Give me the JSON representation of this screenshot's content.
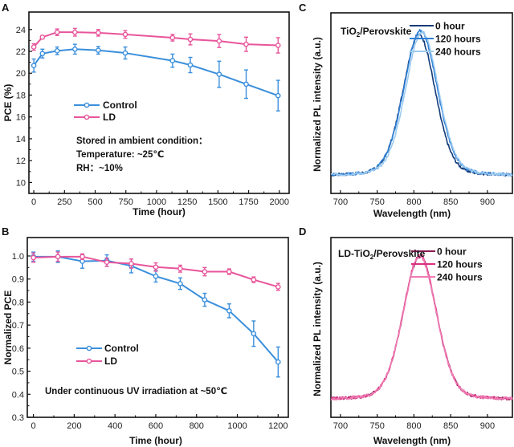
{
  "colors": {
    "control": "#3a8fdc",
    "ld": "#e8559b",
    "c_0h": "#123a7a",
    "c_120h": "#2f80d6",
    "c_240h": "#9ccbf0",
    "d_0h": "#8a1d52",
    "d_120h": "#d9307f",
    "d_240h": "#f07ab3"
  },
  "chart_data": [
    {
      "id": "A",
      "panel_label": "A",
      "type": "line",
      "title": "",
      "xlabel": "Time (hour)",
      "ylabel": "PCE (%)",
      "xlim": [
        -40,
        2080
      ],
      "ylim": [
        9,
        25.6
      ],
      "xticks": [
        0,
        250,
        500,
        750,
        1000,
        1250,
        1500,
        1750,
        2000
      ],
      "yticks": [
        10,
        12,
        14,
        16,
        18,
        20,
        22,
        24
      ],
      "grid": false,
      "legend_position": "center-left",
      "legend": [
        "Control",
        "LD"
      ],
      "annotations": [
        "Stored in  ambient condition：",
        "Temperature: ~25℃",
        "RH：~10%"
      ],
      "x": [
        0,
        70,
        190,
        335,
        525,
        745,
        1130,
        1275,
        1510,
        1730,
        1990
      ],
      "series": [
        {
          "name": "Control",
          "color_key": "control",
          "values": [
            20.7,
            21.8,
            22.05,
            22.2,
            22.1,
            21.85,
            21.15,
            20.75,
            19.9,
            19.0,
            17.95
          ],
          "errors": [
            0.6,
            0.4,
            0.35,
            0.45,
            0.35,
            0.55,
            0.6,
            0.7,
            1.2,
            1.3,
            1.4
          ]
        },
        {
          "name": "LD",
          "color_key": "ld",
          "values": [
            22.4,
            23.3,
            23.75,
            23.75,
            23.7,
            23.55,
            23.25,
            23.1,
            22.95,
            22.65,
            22.55
          ],
          "errors": [
            0.3,
            0.15,
            0.3,
            0.35,
            0.3,
            0.35,
            0.3,
            0.5,
            0.6,
            0.65,
            0.7
          ]
        }
      ]
    },
    {
      "id": "B",
      "panel_label": "B",
      "type": "line",
      "title": "",
      "xlabel": "Time (hour)",
      "ylabel": "Normalized PCE",
      "xlim": [
        -30,
        1250
      ],
      "ylim": [
        0.3,
        1.08
      ],
      "xticks": [
        0,
        200,
        400,
        600,
        800,
        1000,
        1200
      ],
      "yticks": [
        0.3,
        0.4,
        0.5,
        0.6,
        0.7,
        0.8,
        0.9,
        1.0
      ],
      "ytick_labels": [
        "0.3",
        "0.4",
        "0.5",
        "0.6",
        "0.7",
        "0.8",
        "0.9",
        "1.0"
      ],
      "grid": false,
      "legend_position": "center-left",
      "legend": [
        "Control",
        "LD"
      ],
      "annotations": [
        "Under continuous UV irradiation at ~50℃"
      ],
      "x": [
        0,
        120,
        240,
        360,
        480,
        600,
        720,
        840,
        960,
        1080,
        1200
      ],
      "series": [
        {
          "name": "Control",
          "color_key": "control",
          "values": [
            0.997,
            0.997,
            0.977,
            0.98,
            0.957,
            0.912,
            0.88,
            0.81,
            0.762,
            0.663,
            0.54
          ],
          "errors": [
            0.02,
            0.025,
            0.03,
            0.025,
            0.03,
            0.025,
            0.025,
            0.028,
            0.03,
            0.055,
            0.065
          ]
        },
        {
          "name": "LD",
          "color_key": "ld",
          "values": [
            0.993,
            0.997,
            0.997,
            0.973,
            0.967,
            0.952,
            0.945,
            0.932,
            0.932,
            0.897,
            0.866
          ],
          "errors": [
            0.02,
            0.02,
            0.012,
            0.018,
            0.02,
            0.018,
            0.015,
            0.018,
            0.012,
            0.012,
            0.015
          ]
        }
      ]
    },
    {
      "id": "C",
      "panel_label": "C",
      "type": "line",
      "title": "TiO2/Perovskite",
      "title_main": "TiO",
      "title_sub": "2",
      "title_rest": "/Perovskite",
      "xlabel": "Wavelength (nm)",
      "ylabel": "Normalized PL intensity (a.u.)",
      "xlim": [
        687,
        934
      ],
      "ylim": [
        -0.12,
        1.12
      ],
      "xticks": [
        700,
        750,
        800,
        850,
        900
      ],
      "grid": false,
      "legend_position": "top-right",
      "legend": [
        "0 hour",
        "120 hours",
        "240 hours"
      ],
      "series": [
        {
          "name": "0 hour",
          "color_key": "c_0h",
          "peak_nm": 807,
          "fwhm_nm": 52,
          "peak": 0.97
        },
        {
          "name": "120 hours",
          "color_key": "c_120h",
          "peak_nm": 809,
          "fwhm_nm": 54,
          "peak": 1.0
        },
        {
          "name": "240 hours",
          "color_key": "c_240h",
          "peak_nm": 811,
          "fwhm_nm": 53,
          "peak": 0.99
        }
      ]
    },
    {
      "id": "D",
      "panel_label": "D",
      "type": "line",
      "title": "LD-TiO2/Perovskite",
      "title_main": "LD-TiO",
      "title_sub": "2",
      "title_rest": "/Perovskite",
      "xlabel": "Wavelength (nm)",
      "ylabel": "Normalized PL intensity (a.u.)",
      "xlim": [
        687,
        934
      ],
      "ylim": [
        -0.12,
        1.12
      ],
      "xticks": [
        700,
        750,
        800,
        850,
        900
      ],
      "grid": false,
      "legend_position": "top-right",
      "legend": [
        "0 hour",
        "120 hours",
        "240 hours"
      ],
      "series": [
        {
          "name": "0 hour",
          "color_key": "d_0h",
          "peak_nm": 808,
          "fwhm_nm": 54,
          "peak": 0.99
        },
        {
          "name": "120 hours",
          "color_key": "d_120h",
          "peak_nm": 808,
          "fwhm_nm": 54,
          "peak": 1.0
        },
        {
          "name": "240 hours",
          "color_key": "d_240h",
          "peak_nm": 808,
          "fwhm_nm": 54,
          "peak": 0.99
        }
      ]
    }
  ]
}
